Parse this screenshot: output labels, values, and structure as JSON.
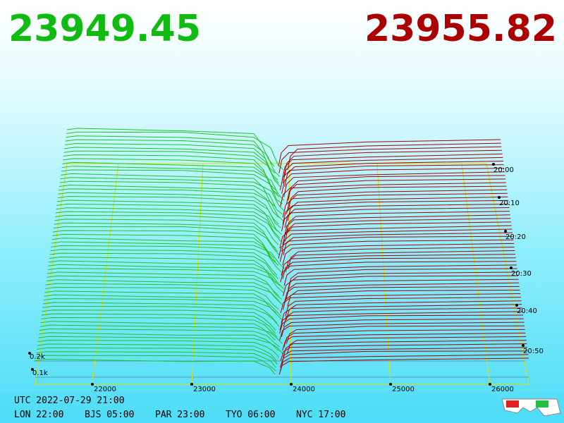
{
  "header": {
    "bid": "23949.45",
    "ask": "23955.82"
  },
  "price_axis": [
    "22000",
    "23000",
    "24000",
    "25000",
    "26000"
  ],
  "time_axis": [
    "20:00",
    "20:10",
    "20:20",
    "20:30",
    "20:40",
    "20:50"
  ],
  "volume_axis": [
    "0.2k",
    "0.1k"
  ],
  "footer": {
    "utc": "UTC 2022-07-29 21:00",
    "clocks": [
      "LON 22:00",
      "BJS 05:00",
      "PAR 23:00",
      "TYO 06:00",
      "NYC 17:00"
    ]
  }
}
